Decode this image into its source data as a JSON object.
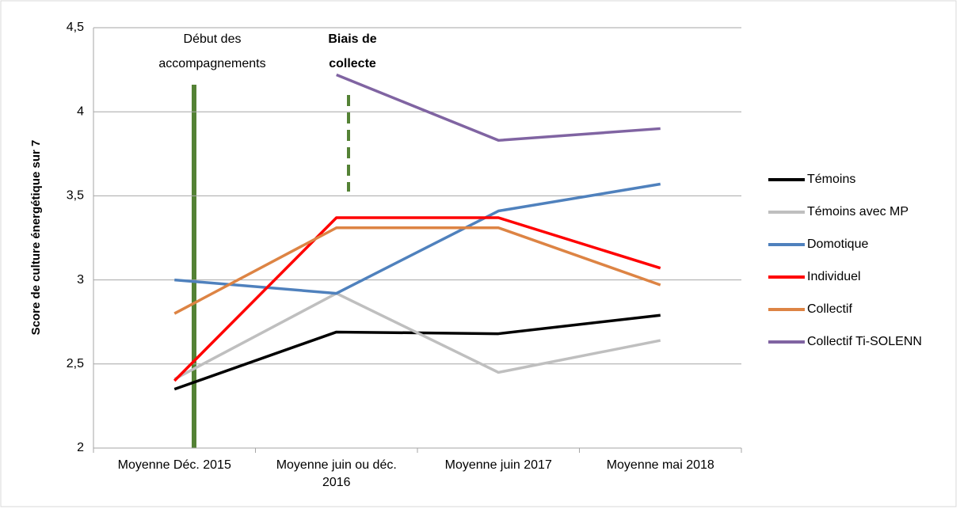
{
  "chart_data": {
    "type": "line",
    "ylabel": "Score de culture énergétique sur 7",
    "categories": [
      "Moyenne Déc. 2015",
      "Moyenne juin ou déc. 2016",
      "Moyenne juin 2017",
      "Moyenne mai 2018"
    ],
    "series": [
      {
        "name": "Témoins",
        "color": "#000000",
        "values": [
          2.35,
          2.69,
          2.68,
          2.79
        ]
      },
      {
        "name": "Témoins avec MP",
        "color": "#bfbfbf",
        "values": [
          2.41,
          2.92,
          2.45,
          2.64
        ]
      },
      {
        "name": "Domotique",
        "color": "#4f81bd",
        "values": [
          3.0,
          2.92,
          3.41,
          3.57
        ]
      },
      {
        "name": "Individuel",
        "color": "#ff0000",
        "values": [
          2.4,
          3.37,
          3.37,
          3.07
        ]
      },
      {
        "name": "Collectif",
        "color": "#dd8444",
        "values": [
          2.8,
          3.31,
          3.31,
          2.97
        ]
      },
      {
        "name": "Collectif Ti-SOLENN",
        "color": "#8064a2",
        "values": [
          null,
          4.22,
          3.83,
          3.9
        ]
      }
    ],
    "annotations": [
      [
        "Début des",
        "accompagnements"
      ],
      [
        "Biais de",
        "collecte"
      ]
    ],
    "ylim": [
      2,
      4.5
    ],
    "yticks": [
      2,
      {
        "value": 2.5,
        "label": "2,5"
      },
      3,
      {
        "value": 3.5,
        "label": "3,5"
      },
      4,
      {
        "value": 4.5,
        "label": "4,5"
      }
    ],
    "grid": true,
    "legend": "right"
  }
}
